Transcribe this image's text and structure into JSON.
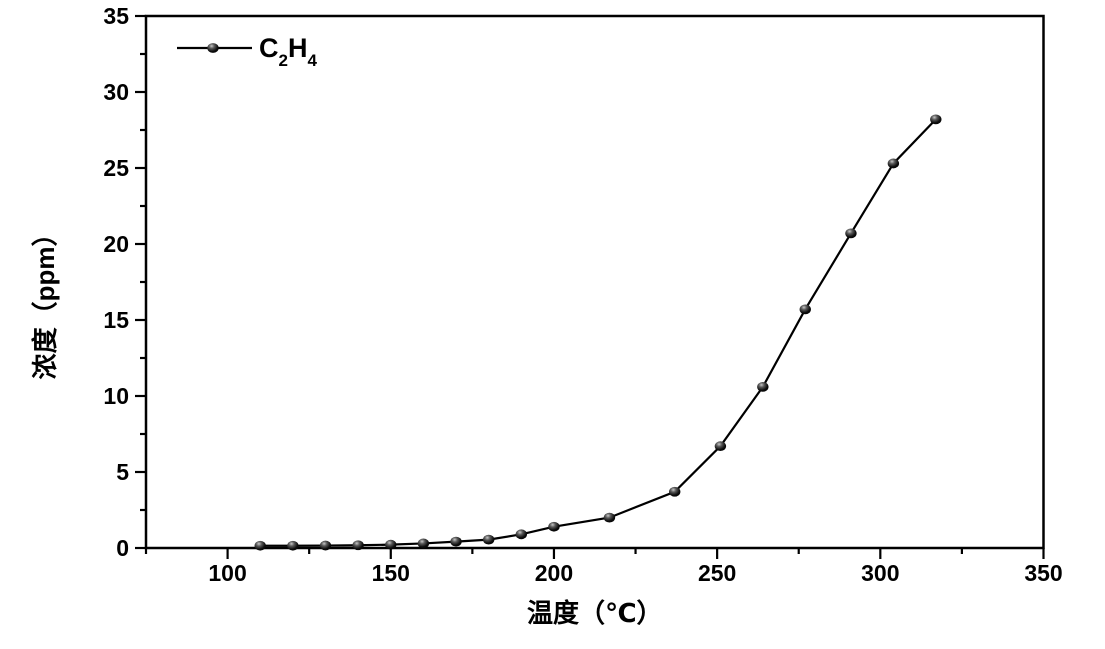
{
  "colors": {
    "foreground": "#000000",
    "background": "#ffffff",
    "marker_highlight": "#c8c8c8"
  },
  "chart_data": {
    "type": "line",
    "title": "",
    "xlabel": "温度（℃）",
    "ylabel": "浓度（ppm）",
    "xlim": [
      75,
      350
    ],
    "ylim": [
      0,
      35
    ],
    "x_major_ticks": [
      100,
      150,
      200,
      250,
      300,
      350
    ],
    "x_minor_tick_step": 25,
    "y_major_ticks": [
      0,
      5,
      10,
      15,
      20,
      25,
      30,
      35
    ],
    "y_minor_tick_step": 2.5,
    "grid": false,
    "legend": {
      "position": "top-left-inside",
      "entries": [
        {
          "label": "C2H4",
          "subscript_digits": true
        }
      ]
    },
    "series": [
      {
        "name": "C2H4",
        "color": "#000000",
        "marker": "ball",
        "x": [
          110,
          120,
          130,
          140,
          150,
          160,
          170,
          180,
          190,
          200,
          217,
          237,
          251,
          264,
          277,
          291,
          304,
          317
        ],
        "y": [
          0.15,
          0.15,
          0.16,
          0.18,
          0.22,
          0.3,
          0.42,
          0.55,
          0.9,
          1.4,
          2.0,
          3.7,
          6.7,
          10.6,
          15.7,
          20.7,
          25.3,
          28.2
        ]
      }
    ]
  }
}
